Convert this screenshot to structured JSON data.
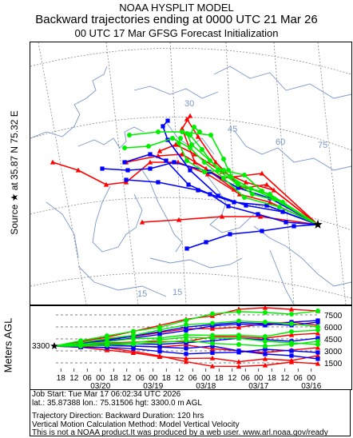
{
  "header": {
    "line1": "NOAA HYSPLIT MODEL",
    "line2": "Backward trajectories ending at 0000 UTC 21 Mar 26",
    "line3": "00 UTC 17 Mar    GFSG  Forecast Initialization"
  },
  "side_label": {
    "prefix": "Source",
    "star": "★",
    "text": "at   35.87 N   75.32 E"
  },
  "map": {
    "grid_labels": [
      "30",
      "45",
      "60",
      "75",
      "15",
      "15"
    ],
    "colors": {
      "red": "#ff0000",
      "blue": "#0000ff",
      "green": "#00ee00",
      "land": "#7a98c8"
    }
  },
  "chart_data": {
    "type": "line",
    "ylabel": "Meters AGL",
    "start_height_label": "3300",
    "height_ticks": [
      "7500",
      "6000",
      "4500",
      "3000",
      "1500"
    ],
    "time_ticks": [
      "18",
      "12",
      "06",
      "00",
      "18",
      "12",
      "06",
      "00",
      "18",
      "12",
      "06",
      "00",
      "18",
      "12",
      "06",
      "00",
      "18",
      "12",
      "06",
      "00"
    ],
    "date_labels": [
      "03/20",
      "03/19",
      "03/18",
      "03/17",
      "03/16"
    ]
  },
  "info": {
    "line1": "Job Start: Tue Mar 17 06:02:34 UTC 2026",
    "line2": "lat.: 35.87388   lon.: 75.31506   hgt: 3300.0 m AGL",
    "line3": "",
    "line4": "Trajectory Direction: Backward       Duration: 120 hrs",
    "line5": "Vertical Motion Calculation Method: Model Vertical Velocity",
    "line6": "This is not a NOAA product.It was produced by a web user. www.arl.noaa.gov/ready"
  }
}
